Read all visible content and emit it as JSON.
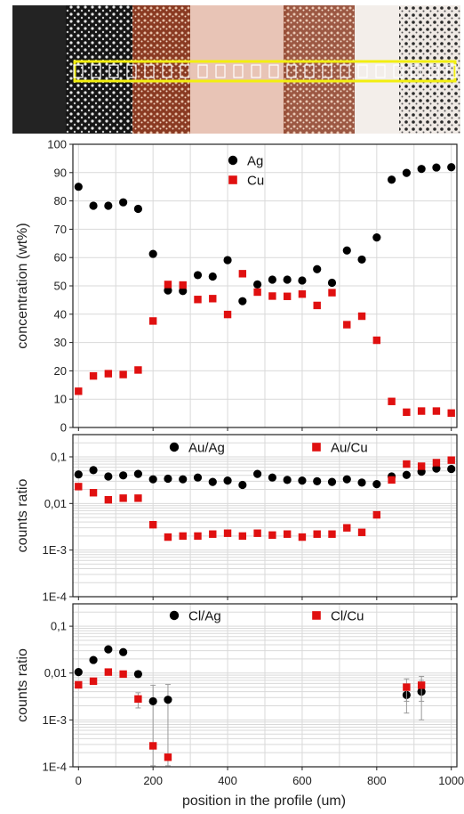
{
  "colors": {
    "ag": "#000000",
    "cu": "#e01010",
    "probe": "#f2ee10",
    "grid": "#d9d9d9"
  },
  "micrograph": {
    "probe_spots": 22
  },
  "chart_data": [
    {
      "type": "scatter",
      "ylabel": "concentration (wt%)",
      "xlabel": "",
      "xlim": [
        -15,
        1015
      ],
      "ylim": [
        0,
        100
      ],
      "yticks": [
        "0",
        "10",
        "20",
        "30",
        "40",
        "50",
        "60",
        "70",
        "80",
        "90",
        "100"
      ],
      "yscale": "linear",
      "grid": true,
      "legend": "top-center",
      "series": [
        {
          "name": "Ag",
          "marker": "circle",
          "x": [
            0,
            40,
            80,
            120,
            160,
            200,
            240,
            280,
            320,
            360,
            400,
            440,
            480,
            520,
            560,
            600,
            640,
            680,
            720,
            760,
            800,
            840,
            880,
            920,
            960,
            1000
          ],
          "y": [
            85,
            78.3,
            78.3,
            79.5,
            77.2,
            61.3,
            48.4,
            48.2,
            53.8,
            53.3,
            59.1,
            44.6,
            50.5,
            52.2,
            52.2,
            51.9,
            55.9,
            51.1,
            62.5,
            59.3,
            67.1,
            87.5,
            89.9,
            91.3,
            91.8,
            91.9
          ]
        },
        {
          "name": "Cu",
          "marker": "square",
          "x": [
            0,
            40,
            80,
            120,
            160,
            200,
            240,
            280,
            320,
            360,
            400,
            440,
            480,
            520,
            560,
            600,
            640,
            680,
            720,
            760,
            800,
            840,
            880,
            920,
            960,
            1000
          ],
          "y": [
            12.8,
            18.2,
            19,
            18.7,
            20.3,
            37.6,
            50.5,
            50.3,
            45.2,
            45.5,
            39.9,
            54.3,
            47.8,
            46.4,
            46.3,
            47.1,
            43.1,
            47.6,
            36.3,
            39.3,
            30.8,
            9.2,
            5.4,
            5.8,
            5.8,
            5.1
          ]
        }
      ]
    },
    {
      "type": "scatter",
      "ylabel": "counts ratio",
      "xlabel": "",
      "xlim": [
        -15,
        1015
      ],
      "ylim": [
        0.0001,
        0.3
      ],
      "yscale": "log",
      "yticks": [
        "0,1",
        "0,01",
        "1E-3",
        "1E-4"
      ],
      "grid": true,
      "legend": "top",
      "series": [
        {
          "name": "Au/Ag",
          "marker": "circle",
          "x": [
            0,
            40,
            80,
            120,
            160,
            200,
            240,
            280,
            320,
            360,
            400,
            440,
            480,
            520,
            560,
            600,
            640,
            680,
            720,
            760,
            800,
            840,
            880,
            920,
            960,
            1000
          ],
          "y": [
            0.042,
            0.052,
            0.038,
            0.04,
            0.043,
            0.033,
            0.034,
            0.033,
            0.036,
            0.029,
            0.031,
            0.025,
            0.043,
            0.036,
            0.032,
            0.031,
            0.03,
            0.029,
            0.033,
            0.028,
            0.026,
            0.038,
            0.041,
            0.048,
            0.056,
            0.055
          ]
        },
        {
          "name": "Au/Cu",
          "marker": "square",
          "x": [
            0,
            40,
            80,
            120,
            160,
            200,
            240,
            280,
            320,
            360,
            400,
            440,
            480,
            520,
            560,
            600,
            640,
            680,
            720,
            760,
            800,
            840,
            880,
            920,
            960,
            1000
          ],
          "y": [
            0.023,
            0.017,
            0.012,
            0.013,
            0.013,
            0.0035,
            0.0019,
            0.002,
            0.002,
            0.0022,
            0.0023,
            0.002,
            0.0023,
            0.0021,
            0.0022,
            0.0019,
            0.0022,
            0.0022,
            0.003,
            0.0024,
            0.0057,
            0.032,
            0.07,
            0.063,
            0.075,
            0.085
          ]
        }
      ]
    },
    {
      "type": "scatter",
      "ylabel": "counts ratio",
      "xlabel": "position in the profile (um)",
      "xlim": [
        -15,
        1015
      ],
      "ylim": [
        0.0001,
        0.3
      ],
      "yscale": "log",
      "yticks": [
        "0,1",
        "0,01",
        "1E-3",
        "1E-4"
      ],
      "xticks": [
        "0",
        "200",
        "400",
        "600",
        "800",
        "1000"
      ],
      "grid": true,
      "legend": "top",
      "series": [
        {
          "name": "Cl/Ag",
          "marker": "circle",
          "x": [
            0,
            40,
            80,
            120,
            160,
            200,
            240,
            880,
            920
          ],
          "y": [
            0.0105,
            0.019,
            0.032,
            0.028,
            0.0095,
            0.0025,
            0.0027,
            0.0034,
            0.004
          ],
          "yerr": [
            0,
            0,
            0,
            0,
            0.0015,
            0.003,
            0.003,
            0.002,
            0.003
          ]
        },
        {
          "name": "Cl/Cu",
          "marker": "square",
          "x": [
            0,
            40,
            80,
            120,
            160,
            200,
            240,
            880,
            920
          ],
          "y": [
            0.0056,
            0.0067,
            0.0105,
            0.0095,
            0.0028,
            0.00028,
            0.00016,
            0.005,
            0.0055
          ],
          "yerr": [
            0,
            0,
            0,
            0,
            0.001,
            0,
            0,
            0.0025,
            0.003
          ]
        }
      ]
    }
  ]
}
